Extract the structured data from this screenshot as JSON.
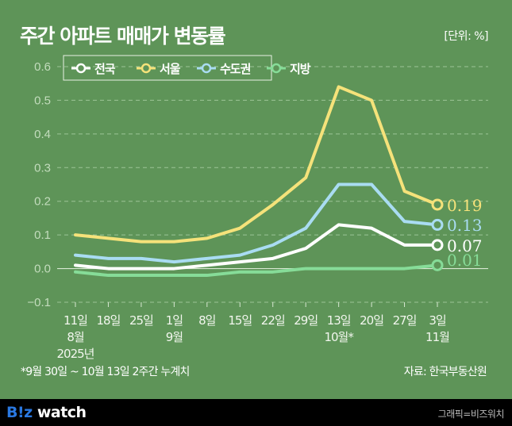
{
  "header": {
    "title": "주간 아파트 매매가 변동률",
    "unit": "[단위: %]"
  },
  "chart_data": {
    "type": "line",
    "title": "주간 아파트 매매가 변동률",
    "unit": "%",
    "xlabel": "",
    "ylabel": "",
    "ylim": [
      -0.1,
      0.6
    ],
    "yticks": [
      0.6,
      0.5,
      0.4,
      0.3,
      0.2,
      0.1,
      0.0,
      -0.1
    ],
    "ytick_labels": [
      "0.6",
      "0.5",
      "0.4",
      "0.3",
      "0.2",
      "0.1",
      "0.0",
      "−0.1"
    ],
    "grid": true,
    "legend_position": "top-left",
    "categories": [
      "11일",
      "18일",
      "25일",
      "1일",
      "8일",
      "15일",
      "22일",
      "29일",
      "13일",
      "20일",
      "27일",
      "3일"
    ],
    "month_labels": [
      {
        "index": 0,
        "label": "8월"
      },
      {
        "index": 3,
        "label": "9월"
      },
      {
        "index": 8,
        "label": "10월*"
      },
      {
        "index": 11,
        "label": "11월"
      }
    ],
    "year_label": {
      "index": 0,
      "label": "2025년"
    },
    "series": [
      {
        "name": "전국",
        "color": "#ffffff",
        "values": [
          0.01,
          0.0,
          0.0,
          0.0,
          0.01,
          0.02,
          0.03,
          0.06,
          0.13,
          0.12,
          0.07,
          0.07
        ],
        "end_label": "0.07"
      },
      {
        "name": "서울",
        "color": "#f5e27a",
        "values": [
          0.1,
          0.09,
          0.08,
          0.08,
          0.09,
          0.12,
          0.19,
          0.27,
          0.54,
          0.5,
          0.23,
          0.19
        ],
        "end_label": "0.19"
      },
      {
        "name": "수도권",
        "color": "#a9dcf2",
        "values": [
          0.04,
          0.03,
          0.03,
          0.02,
          0.03,
          0.04,
          0.07,
          0.12,
          0.25,
          0.25,
          0.14,
          0.13
        ],
        "end_label": "0.13"
      },
      {
        "name": "지방",
        "color": "#86dc98",
        "values": [
          -0.01,
          -0.02,
          -0.02,
          -0.02,
          -0.02,
          -0.01,
          -0.01,
          0.0,
          0.0,
          0.0,
          0.0,
          0.01
        ],
        "end_label": "0.01"
      }
    ]
  },
  "footnote": "*9월 30일 ~ 10월 13일 2주간 누계치",
  "source": "자료: 한국부동산원",
  "footer": {
    "logo_biz": "B!z",
    "logo_watch": " watch",
    "credit": "그래픽=비즈워치"
  }
}
